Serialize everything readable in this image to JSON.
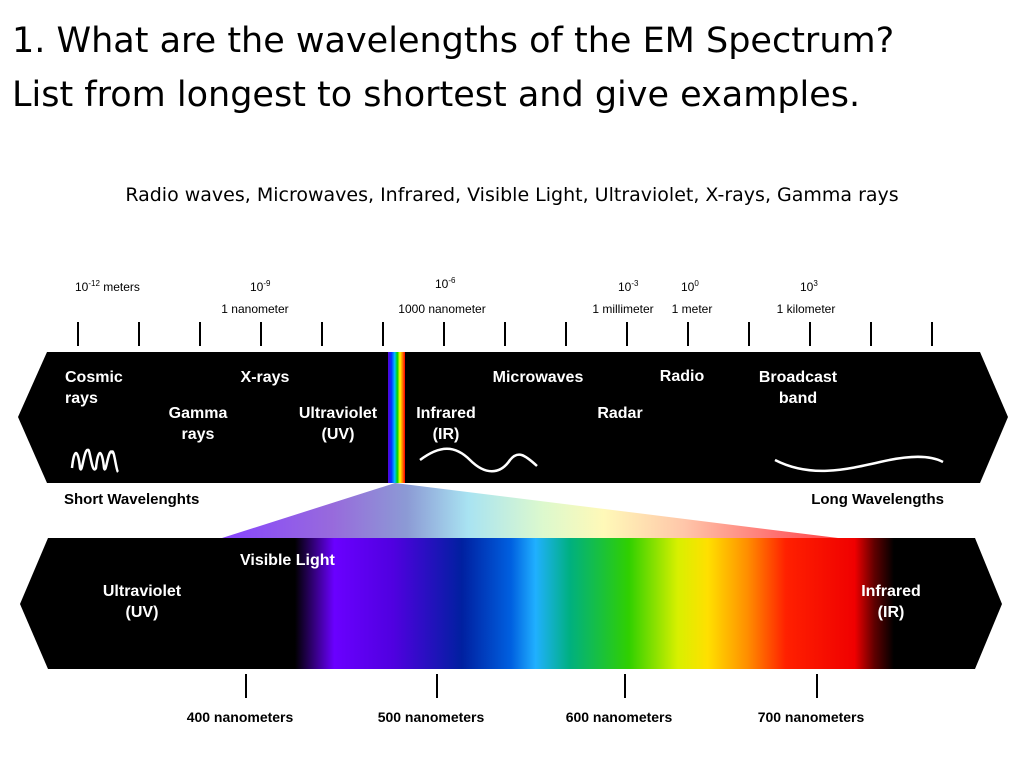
{
  "question": {
    "line1": "1. What are the wavelengths of the EM Spectrum?",
    "line2": "List from longest to shortest and give examples."
  },
  "answer": "Radio waves, Microwaves, Infrared, Visible Light, Ultraviolet, X-rays, Gamma rays",
  "scale": {
    "m12": {
      "base": "10",
      "exp": "-12",
      "unit": " meters"
    },
    "m9": {
      "base": "10",
      "exp": "-9",
      "name": "1 nanometer"
    },
    "m6": {
      "base": "10",
      "exp": "-6",
      "name": "1000 nanometer"
    },
    "m3": {
      "base": "10",
      "exp": "-3",
      "name": "1 millimeter"
    },
    "m0": {
      "base": "10",
      "exp": "0",
      "name": "1 meter"
    },
    "p3": {
      "base": "10",
      "exp": "3",
      "name": "1 kilometer"
    }
  },
  "bands": {
    "cosmic1": "Cosmic",
    "cosmic2": "rays",
    "gamma1": "Gamma",
    "gamma2": "rays",
    "xrays": "X-rays",
    "uv1": "Ultraviolet",
    "uv2": "(UV)",
    "ir1": "Infrared",
    "ir2": "(IR)",
    "microwaves": "Microwaves",
    "radar": "Radar",
    "radio": "Radio",
    "broadcast1": "Broadcast",
    "broadcast2": "band"
  },
  "short_label": "Short Wavelenghts",
  "long_label": "Long Wavelengths",
  "visible": {
    "title": "Visible Light",
    "uv1": "Ultraviolet",
    "uv2": "(UV)",
    "ir1": "Infrared",
    "ir2": "(IR)",
    "ticks": [
      "400 nanometers",
      "500 nanometers",
      "600 nanometers",
      "700 nanometers"
    ]
  },
  "colors": {
    "band_bg": "#000000",
    "label_on_dark": "#ffffff",
    "label_on_light": "#000000"
  }
}
